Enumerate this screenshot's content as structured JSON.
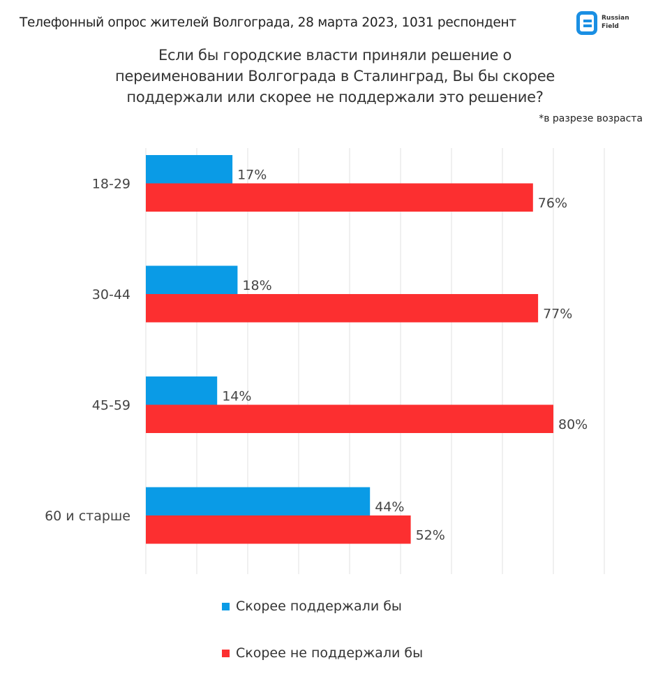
{
  "header": {
    "title": "Телефонный опрос жителей Волгограда, 28 марта 2023, 1031 респондент"
  },
  "logo": {
    "text_line1": "Russian",
    "text_line2": "Field"
  },
  "chart_data": {
    "type": "bar",
    "orientation": "horizontal",
    "title": "Если бы городские власти приняли решение о переименовании Волгограда в Сталинград, Вы бы скорее поддержали или скорее не поддержали это решение?",
    "subtitle": "*в разрезе возраста",
    "categories": [
      "18-29",
      "30-44",
      "45-59",
      "60 и старше"
    ],
    "series": [
      {
        "name": "Скорее поддержали бы",
        "color": "#0a9be6",
        "values": [
          17,
          18,
          14,
          44
        ],
        "labels": [
          "17%",
          "18%",
          "14%",
          "44%"
        ]
      },
      {
        "name": "Скорее не поддержали бы",
        "color": "#fc2f30",
        "values": [
          76,
          77,
          80,
          52
        ],
        "labels": [
          "76%",
          "77%",
          "80%",
          "52%"
        ]
      }
    ],
    "xlim": [
      0,
      90
    ],
    "grid": true,
    "legend": "bottom"
  }
}
